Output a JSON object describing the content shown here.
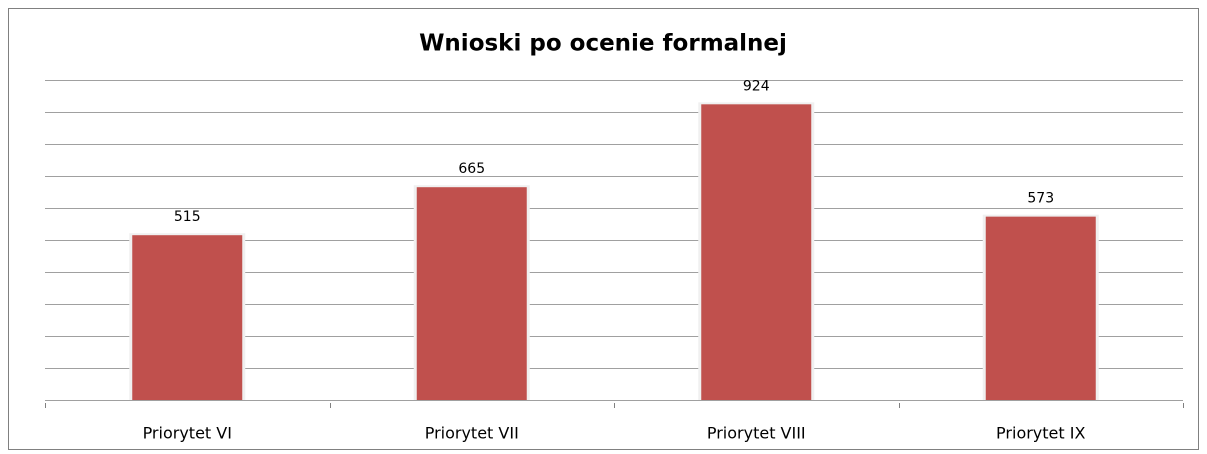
{
  "chart_data": {
    "type": "bar",
    "title": "Wnioski po ocenie formalnej",
    "categories": [
      "Priorytet VI",
      "Priorytet VII",
      "Priorytet VIII",
      "Priorytet IX"
    ],
    "values": [
      515,
      665,
      924,
      573
    ],
    "color": "#c0504d",
    "ylim": [
      0,
      1000
    ],
    "yticks": [
      0,
      100,
      200,
      300,
      400,
      500,
      600,
      700,
      800,
      900,
      1000
    ],
    "grid": true
  }
}
